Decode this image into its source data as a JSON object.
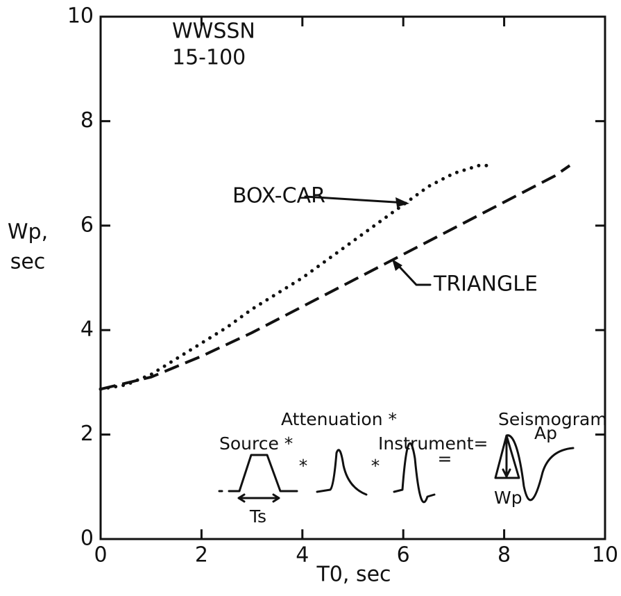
{
  "chart_data": {
    "type": "line",
    "xlabel": "T0, sec",
    "ylabel_lines": [
      "Wp,",
      "sec"
    ],
    "annotations": [
      "WWSSN",
      "15-100"
    ],
    "xlim": [
      0,
      10
    ],
    "xticks": [
      0,
      2,
      4,
      6,
      8,
      10
    ],
    "ylim": [
      0,
      10
    ],
    "yticks": [
      0,
      2,
      4,
      6,
      8,
      10
    ],
    "grid": false,
    "series": [
      {
        "name": "BOX-CAR",
        "color": "#111111",
        "style": "dotted",
        "x": [
          0,
          0.5,
          1,
          1.5,
          2,
          2.5,
          3,
          3.5,
          4,
          4.5,
          5,
          5.5,
          6,
          6.5,
          7,
          7.5,
          7.7
        ],
        "values": [
          2.87,
          2.95,
          3.15,
          3.45,
          3.75,
          4.05,
          4.4,
          4.7,
          5.0,
          5.35,
          5.7,
          6.05,
          6.4,
          6.75,
          7.0,
          7.15,
          7.15
        ]
      },
      {
        "name": "TRIANGLE",
        "color": "#111111",
        "style": "dashed",
        "x": [
          0,
          1,
          2,
          3,
          4,
          5,
          6,
          7,
          8,
          9,
          9.3
        ],
        "values": [
          2.87,
          3.1,
          3.5,
          3.95,
          4.45,
          4.95,
          5.45,
          5.95,
          6.45,
          6.95,
          7.15
        ]
      }
    ]
  },
  "inset": {
    "source": "Source *",
    "attenuation": "Attenuation *",
    "instrument": "Instrument=",
    "seismogram": "Seismogram",
    "op1": "*",
    "op2": "*",
    "op3": "=",
    "ts": "Ts",
    "ap": "Ap",
    "wp": "Wp"
  }
}
